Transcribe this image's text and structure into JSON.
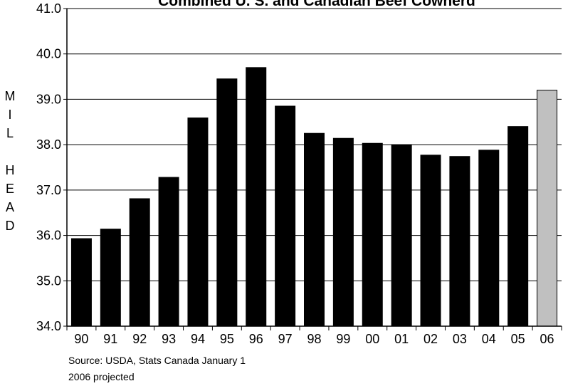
{
  "chart_data": {
    "type": "bar",
    "title": "Combined U. S. and Canadian Beef Cowherd",
    "ylabel_letters": [
      "M",
      "I",
      "L",
      "",
      "H",
      "E",
      "A",
      "D"
    ],
    "categories": [
      "90",
      "91",
      "92",
      "93",
      "94",
      "95",
      "96",
      "97",
      "98",
      "99",
      "00",
      "01",
      "02",
      "03",
      "04",
      "05",
      "06"
    ],
    "values": [
      35.93,
      36.14,
      36.81,
      37.28,
      38.59,
      39.45,
      39.7,
      38.85,
      38.25,
      38.14,
      38.03,
      38.0,
      37.77,
      37.74,
      37.88,
      38.4,
      39.2
    ],
    "projected": [
      false,
      false,
      false,
      false,
      false,
      false,
      false,
      false,
      false,
      false,
      false,
      false,
      false,
      false,
      false,
      false,
      true
    ],
    "ylim": [
      34.0,
      41.0
    ],
    "yticks": [
      "34.0",
      "35.0",
      "36.0",
      "37.0",
      "38.0",
      "39.0",
      "40.0",
      "41.0"
    ],
    "grid": true,
    "colors": {
      "bar": "#000000",
      "projected_bar": "#c0c0c0"
    }
  },
  "footnotes": {
    "source": "Source: USDA, Stats Canada January 1",
    "projected": "2006 projected"
  }
}
